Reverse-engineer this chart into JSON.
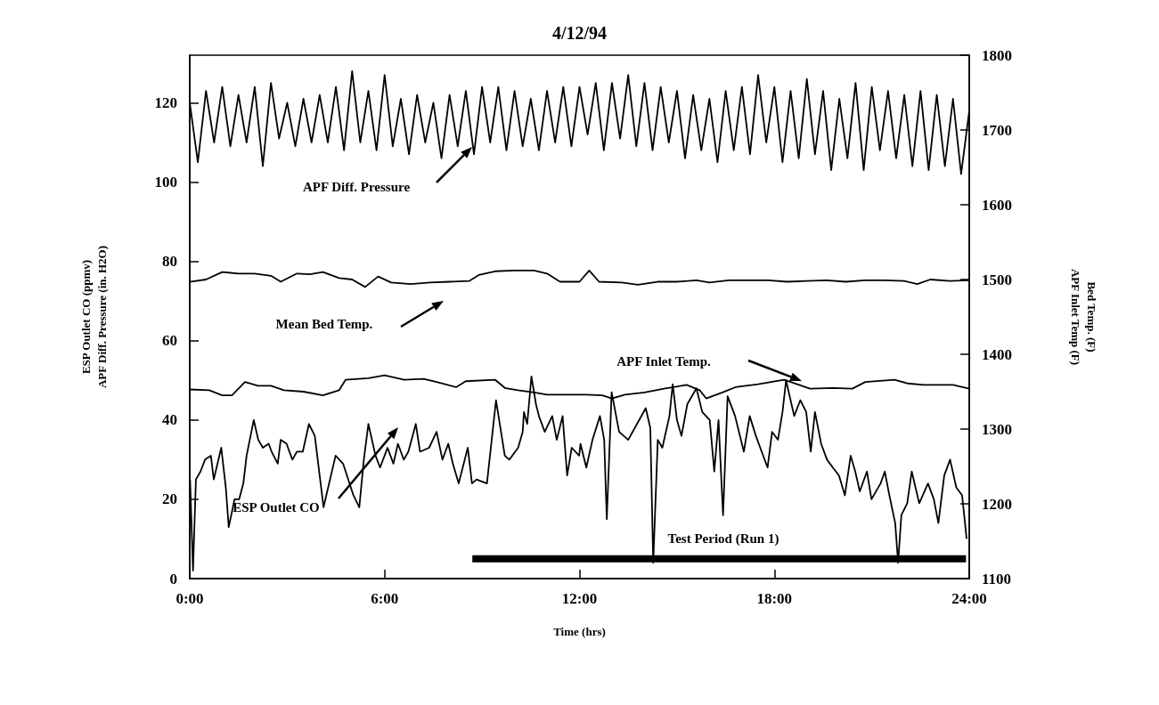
{
  "chart_data": {
    "type": "line",
    "title": "4/12/94",
    "xlabel": "Time (hrs)",
    "ylabel": "ESP Outlet CO (ppmv)\nAPF Diff. Pressure (in. H2O)",
    "y2label": "Bed Temp. (F)\nAPF Inlet Temp (F)",
    "xlim": [
      0,
      24
    ],
    "xticks": [
      {
        "value": 0,
        "label": "0:00"
      },
      {
        "value": 6,
        "label": "6:00"
      },
      {
        "value": 12,
        "label": "12:00"
      },
      {
        "value": 18,
        "label": "18:00"
      },
      {
        "value": 24,
        "label": "24:00"
      }
    ],
    "ylim": [
      0,
      132
    ],
    "yticks": [
      0,
      20,
      40,
      60,
      80,
      100,
      120
    ],
    "y2lim": [
      1100,
      1800
    ],
    "y2ticks": [
      1100,
      1200,
      1300,
      1400,
      1500,
      1600,
      1700,
      1800
    ],
    "grid": false,
    "marker": "none",
    "line_style": "solid",
    "annotations": [
      "APF Diff. Pressure",
      "Mean Bed Temp.",
      "APF Inlet Temp.",
      "ESP Outlet CO",
      "Test Period (Run 1)"
    ],
    "series": [
      {
        "color": "#000000",
        "x": [
          8.7,
          23.9
        ],
        "values": [
          5,
          5
        ]
      },
      {
        "color": "#000000",
        "x": [
          0,
          0.25,
          0.5,
          0.75,
          1,
          1.25,
          1.5,
          1.75,
          2,
          2.25,
          2.5,
          2.75,
          3,
          3.25,
          3.5,
          3.75,
          4,
          4.25,
          4.5,
          4.75,
          5,
          5.25,
          5.5,
          5.75,
          6,
          6.25,
          6.5,
          6.75,
          7,
          7.25,
          7.5,
          7.75,
          8,
          8.25,
          8.5,
          8.75,
          9,
          9.25,
          9.5,
          9.75,
          10,
          10.25,
          10.5,
          10.75,
          11,
          11.25,
          11.5,
          11.75,
          12,
          12.25,
          12.5,
          12.75,
          13,
          13.25,
          13.5,
          13.75,
          14,
          14.25,
          14.5,
          14.75,
          15,
          15.25,
          15.5,
          15.75,
          16,
          16.25,
          16.5,
          16.75,
          17,
          17.25,
          17.5,
          17.75,
          18,
          18.25,
          18.5,
          18.75,
          19,
          19.25,
          19.5,
          19.75,
          20,
          20.25,
          20.5,
          20.75,
          21,
          21.25,
          21.5,
          21.75,
          22,
          22.25,
          22.5,
          22.75,
          23,
          23.25,
          23.5,
          23.75,
          24
        ],
        "values": [
          120,
          105,
          123,
          110,
          124,
          109,
          122,
          110,
          124,
          104,
          125,
          111,
          120,
          109,
          121,
          110,
          122,
          110,
          124,
          108,
          128,
          110,
          123,
          108,
          127,
          109,
          121,
          107,
          122,
          110,
          120,
          106,
          122,
          109,
          123,
          107,
          124,
          110,
          124,
          108,
          123,
          109,
          121,
          108,
          123,
          110,
          124,
          109,
          124,
          112,
          125,
          108,
          125,
          111,
          127,
          109,
          125,
          108,
          124,
          110,
          123,
          106,
          122,
          108,
          121,
          105,
          123,
          108,
          124,
          107,
          127,
          110,
          124,
          105,
          123,
          106,
          126,
          107,
          123,
          103,
          121,
          106,
          125,
          103,
          124,
          108,
          123,
          106,
          122,
          104,
          123,
          103,
          122,
          104,
          121,
          102,
          118
        ]
      },
      {
        "color": "#000000",
        "axis": "y2",
        "x": [
          0,
          0.5,
          1,
          1.5,
          2,
          2.5,
          2.8,
          3.3,
          3.7,
          4.1,
          4.6,
          5,
          5.4,
          5.8,
          6.2,
          6.8,
          7.4,
          8,
          8.6,
          8.9,
          9.4,
          10,
          10.6,
          11,
          11.4,
          12,
          12.3,
          12.6,
          13.3,
          13.8,
          14.4,
          15,
          15.6,
          16,
          16.6,
          17.2,
          17.8,
          18.4,
          19,
          19.6,
          20.2,
          20.8,
          21.4,
          22,
          22.4,
          22.8,
          23.4,
          24
        ],
        "values": [
          1497,
          1500,
          1510,
          1508,
          1508,
          1505,
          1497,
          1508,
          1507,
          1510,
          1502,
          1500,
          1490,
          1504,
          1496,
          1494,
          1496,
          1497,
          1498,
          1506,
          1511,
          1512,
          1512,
          1508,
          1497,
          1497,
          1512,
          1497,
          1496,
          1493,
          1497,
          1497,
          1499,
          1496,
          1499,
          1499,
          1499,
          1497,
          1498,
          1499,
          1497,
          1499,
          1499,
          1498,
          1494,
          1500,
          1498,
          1499
        ]
      },
      {
        "color": "#000000",
        "axis": "y2",
        "x": [
          0,
          0.6,
          1,
          1.3,
          1.7,
          2.1,
          2.5,
          2.9,
          3.5,
          4.1,
          4.6,
          4.8,
          5.5,
          6,
          6.6,
          7.2,
          7.6,
          8.2,
          8.5,
          9.4,
          9.7,
          10.1,
          10.6,
          11,
          12.2,
          12.7,
          13,
          13.4,
          14,
          14.6,
          15.3,
          15.7,
          15.9,
          16.4,
          16.8,
          17.5,
          18.3,
          19.1,
          19.8,
          20.4,
          20.8,
          21.7,
          22.1,
          22.6,
          23.5,
          24
        ],
        "values": [
          1353,
          1352,
          1345,
          1345,
          1363,
          1358,
          1358,
          1352,
          1350,
          1345,
          1352,
          1366,
          1368,
          1372,
          1366,
          1367,
          1363,
          1356,
          1364,
          1366,
          1355,
          1352,
          1349,
          1346,
          1346,
          1345,
          1341,
          1346,
          1349,
          1354,
          1359,
          1352,
          1341,
          1349,
          1356,
          1360,
          1366,
          1354,
          1355,
          1354,
          1363,
          1366,
          1361,
          1359,
          1359,
          1354
        ]
      },
      {
        "color": "#000000",
        "x": [
          0.01,
          0.1,
          0.19,
          0.33,
          0.47,
          0.65,
          0.74,
          0.97,
          1.11,
          1.2,
          1.38,
          1.52,
          1.65,
          1.75,
          1.97,
          2.11,
          2.25,
          2.43,
          2.52,
          2.71,
          2.8,
          2.98,
          3.16,
          3.3,
          3.48,
          3.67,
          3.85,
          4.12,
          4.49,
          4.72,
          5.04,
          5.22,
          5.36,
          5.5,
          5.72,
          5.86,
          6.09,
          6.27,
          6.41,
          6.59,
          6.73,
          6.96,
          7.09,
          7.37,
          7.6,
          7.78,
          7.96,
          8.1,
          8.28,
          8.56,
          8.69,
          8.83,
          9.15,
          9.43,
          9.7,
          9.84,
          10.11,
          10.25,
          10.29,
          10.39,
          10.52,
          10.66,
          10.75,
          10.93,
          11.16,
          11.3,
          11.48,
          11.62,
          11.76,
          11.99,
          12.03,
          12.21,
          12.4,
          12.63,
          12.76,
          12.84,
          12.99,
          13.22,
          13.5,
          13.77,
          14.04,
          14.18,
          14.27,
          14.41,
          14.55,
          14.77,
          14.87,
          15,
          15.14,
          15.32,
          15.6,
          15.78,
          16.01,
          16.15,
          16.28,
          16.42,
          16.56,
          16.79,
          17.06,
          17.24,
          17.43,
          17.61,
          17.79,
          17.93,
          18.11,
          18.25,
          18.36,
          18.61,
          18.8,
          18.98,
          19.12,
          19.25,
          19.44,
          19.62,
          19.8,
          19.99,
          20.17,
          20.35,
          20.49,
          20.63,
          20.85,
          20.99,
          21.27,
          21.4,
          21.54,
          21.72,
          21.81,
          21.91,
          22.09,
          22.23,
          22.46,
          22.73,
          22.91,
          23.05,
          23.23,
          23.41,
          23.6,
          23.78,
          23.92
        ],
        "values": [
          25,
          2,
          25,
          27,
          30,
          31,
          25,
          33,
          23,
          13,
          20,
          20,
          24,
          31,
          40,
          35,
          33,
          34,
          32,
          29,
          35,
          34,
          30,
          32,
          32,
          39,
          36,
          18,
          31,
          29,
          21,
          18,
          30,
          39,
          31,
          28,
          33,
          29,
          34,
          30,
          32,
          39,
          32,
          33,
          37,
          30,
          34,
          29,
          24,
          33,
          24,
          25,
          24,
          45,
          31,
          30,
          33,
          37,
          42,
          39,
          51,
          44,
          41,
          37,
          41,
          35,
          41,
          26,
          33,
          31,
          34,
          28,
          35,
          41,
          35,
          15,
          47,
          37,
          35,
          39,
          43,
          38,
          4,
          35,
          33,
          41,
          49,
          40,
          36,
          44,
          48,
          42,
          40,
          27,
          40,
          16,
          46,
          41,
          32,
          41,
          36,
          32,
          28,
          37,
          35,
          42,
          50,
          41,
          45,
          42,
          32,
          42,
          34,
          30,
          28,
          26,
          21,
          31,
          27,
          22,
          27,
          20,
          24,
          27,
          21,
          14,
          4,
          16,
          19,
          27,
          19,
          24,
          20,
          14,
          26,
          30,
          23,
          21,
          10
        ]
      }
    ]
  }
}
